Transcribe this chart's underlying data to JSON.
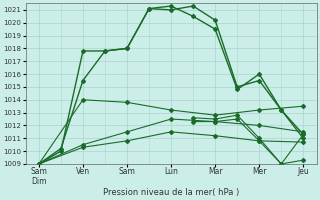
{
  "bg_color": "#cceee8",
  "grid_color": "#aad4ce",
  "line_color": "#1a6b2a",
  "xlabel": "Pression niveau de la mer( hPa )",
  "ylim": [
    1009,
    1021.5
  ],
  "yticks": [
    1009,
    1010,
    1011,
    1012,
    1013,
    1014,
    1015,
    1016,
    1017,
    1018,
    1019,
    1020,
    1021
  ],
  "x_positions": [
    0,
    1,
    2,
    3,
    4,
    5,
    6
  ],
  "x_labels": [
    "Sam\nDim",
    "Ven",
    "Sam",
    "Lun",
    "Mar",
    "Mer",
    "Jeu"
  ],
  "lines": [
    {
      "x": [
        0,
        0.5,
        1,
        1.5,
        2,
        2.5,
        3,
        3.5,
        4,
        4.5,
        5,
        5.5,
        6
      ],
      "y": [
        1009.0,
        1010.2,
        1015.5,
        1017.8,
        1018.0,
        1021.1,
        1021.3,
        1020.5,
        1019.5,
        1014.8,
        1016.0,
        1013.2,
        1011.3
      ],
      "lw": 1.0,
      "marker": true
    },
    {
      "x": [
        0,
        0.5,
        1,
        1.5,
        2,
        2.5,
        3,
        3.5,
        4,
        4.5,
        5,
        5.5,
        6
      ],
      "y": [
        1009.0,
        1010.0,
        1017.8,
        1017.8,
        1018.0,
        1021.1,
        1021.0,
        1021.3,
        1020.2,
        1015.0,
        1015.5,
        1013.2,
        1011.0
      ],
      "lw": 1.0,
      "marker": true
    },
    {
      "x": [
        0,
        1,
        2,
        3,
        4,
        5,
        6
      ],
      "y": [
        1009.0,
        1014.0,
        1013.8,
        1013.2,
        1012.8,
        1013.2,
        1013.5
      ],
      "lw": 0.8,
      "marker": true
    },
    {
      "x": [
        0,
        1,
        2,
        3,
        4,
        5,
        6
      ],
      "y": [
        1009.0,
        1010.5,
        1011.5,
        1012.5,
        1012.3,
        1012.0,
        1011.5
      ],
      "lw": 0.8,
      "marker": true
    },
    {
      "x": [
        0,
        1,
        2,
        3,
        4,
        5,
        6
      ],
      "y": [
        1009.0,
        1010.3,
        1010.8,
        1011.5,
        1011.2,
        1010.8,
        1010.7
      ],
      "lw": 0.8,
      "marker": true
    },
    {
      "x": [
        3.5,
        4,
        4.5,
        5,
        5.5,
        6
      ],
      "y": [
        1012.6,
        1012.5,
        1012.8,
        1011.0,
        1009.0,
        1009.3
      ],
      "lw": 0.8,
      "marker": true
    },
    {
      "x": [
        3.5,
        4,
        4.5,
        5,
        5.5,
        6
      ],
      "y": [
        1012.3,
        1012.3,
        1012.5,
        1010.8,
        1009.0,
        1011.3
      ],
      "lw": 0.8,
      "marker": true
    }
  ]
}
